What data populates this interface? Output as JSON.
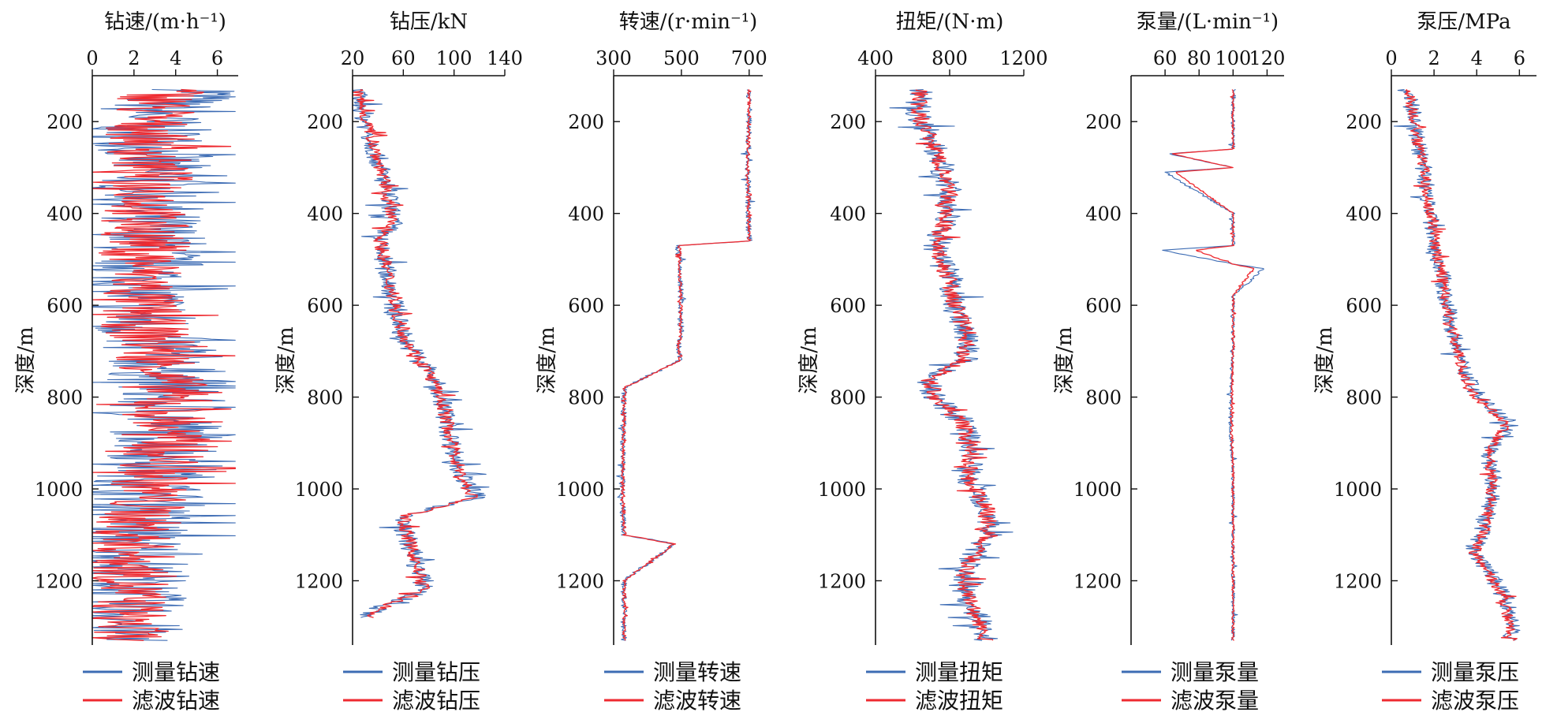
{
  "colors": {
    "measured": "#3d6cb4",
    "filtered": "#ee2a30",
    "axis": "#111111"
  },
  "shared_ylabel": "深度/m",
  "y_ticks": [
    200,
    400,
    600,
    800,
    1000,
    1200
  ],
  "chart_data": [
    {
      "type": "line",
      "title": "钻速/(m·h⁻¹)",
      "xlabel": "钻速/(m·h⁻¹)",
      "ylabel": "深度/m",
      "xlim": [
        0,
        7
      ],
      "ylim": [
        1340,
        100
      ],
      "x_ticks": [
        0,
        2,
        4,
        6
      ],
      "y_ticks": [
        200,
        400,
        600,
        800,
        1000,
        1200
      ],
      "orientation": "vertical-depth",
      "grid": false,
      "legend_position": "bottom",
      "series": [
        {
          "name": "测量钻速",
          "depth": [
            130,
            160,
            200,
            240,
            300,
            360,
            400,
            460,
            520,
            580,
            640,
            700,
            760,
            820,
            880,
            940,
            1000,
            1060,
            1120,
            1180,
            1240,
            1300,
            1330
          ],
          "values": [
            5.8,
            3.2,
            2.6,
            3.0,
            2.8,
            3.2,
            2.4,
            2.8,
            2.6,
            2.2,
            2.4,
            3.4,
            3.6,
            3.4,
            3.8,
            3.6,
            2.8,
            2.4,
            1.8,
            2.0,
            1.6,
            1.4,
            1.8
          ]
        },
        {
          "name": "滤波钻速",
          "depth": [
            130,
            160,
            200,
            240,
            300,
            360,
            400,
            460,
            520,
            580,
            640,
            700,
            760,
            820,
            880,
            940,
            1000,
            1060,
            1120,
            1180,
            1240,
            1300,
            1330
          ],
          "values": [
            3.8,
            3.0,
            2.6,
            2.8,
            2.7,
            3.0,
            2.5,
            2.7,
            2.5,
            2.3,
            2.4,
            3.2,
            3.5,
            3.5,
            3.6,
            3.5,
            2.8,
            2.3,
            1.9,
            2.0,
            1.7,
            1.5,
            1.7
          ]
        }
      ]
    },
    {
      "type": "line",
      "title": "钻压/kN",
      "xlabel": "钻压/kN",
      "ylabel": "深度/m",
      "xlim": [
        20,
        140
      ],
      "ylim": [
        1340,
        100
      ],
      "x_ticks": [
        20,
        60,
        100,
        140
      ],
      "y_ticks": [
        200,
        400,
        600,
        800,
        1000,
        1200
      ],
      "orientation": "vertical-depth",
      "grid": false,
      "legend_position": "bottom",
      "series": [
        {
          "name": "测量钻压",
          "depth": [
            130,
            180,
            240,
            300,
            360,
            420,
            460,
            500,
            560,
            620,
            680,
            740,
            800,
            860,
            920,
            980,
            1020,
            1060,
            1100,
            1160,
            1220,
            1260,
            1280
          ],
          "values": [
            22,
            28,
            35,
            42,
            48,
            52,
            40,
            44,
            50,
            54,
            62,
            80,
            90,
            95,
            100,
            108,
            118,
            58,
            62,
            70,
            78,
            40,
            30
          ]
        },
        {
          "name": "滤波钻压",
          "depth": [
            130,
            180,
            240,
            300,
            360,
            420,
            460,
            500,
            560,
            620,
            680,
            740,
            800,
            860,
            920,
            980,
            1020,
            1060,
            1100,
            1160,
            1220,
            1260,
            1280
          ],
          "values": [
            23,
            29,
            36,
            42,
            47,
            51,
            42,
            45,
            50,
            55,
            63,
            79,
            89,
            95,
            100,
            107,
            115,
            60,
            63,
            70,
            76,
            42,
            32
          ]
        }
      ]
    },
    {
      "type": "line",
      "title": "转速/(r·min⁻¹)",
      "xlabel": "转速/(r·min⁻¹)",
      "ylabel": "深度/m",
      "xlim": [
        300,
        740
      ],
      "ylim": [
        1340,
        100
      ],
      "x_ticks": [
        300,
        500,
        700
      ],
      "y_ticks": [
        200,
        400,
        600,
        800,
        1000,
        1200
      ],
      "orientation": "vertical-depth",
      "grid": false,
      "legend_position": "bottom",
      "series": [
        {
          "name": "测量转速",
          "depth": [
            130,
            200,
            300,
            380,
            460,
            470,
            520,
            600,
            620,
            660,
            680,
            720,
            780,
            800,
            1000,
            1100,
            1120,
            1200,
            1330
          ],
          "values": [
            700,
            700,
            695,
            698,
            700,
            490,
            495,
            500,
            495,
            500,
            490,
            495,
            330,
            330,
            325,
            330,
            480,
            330,
            330
          ]
        },
        {
          "name": "滤波转速",
          "depth": [
            130,
            200,
            300,
            380,
            460,
            470,
            520,
            600,
            620,
            660,
            680,
            720,
            780,
            800,
            1000,
            1100,
            1120,
            1200,
            1330
          ],
          "values": [
            700,
            700,
            695,
            698,
            700,
            495,
            495,
            500,
            495,
            500,
            492,
            495,
            332,
            332,
            327,
            332,
            478,
            332,
            332
          ]
        }
      ]
    },
    {
      "type": "line",
      "title": "扭矩/(N·m)",
      "xlabel": "扭矩/(N·m)",
      "ylabel": "深度/m",
      "xlim": [
        400,
        1200
      ],
      "ylim": [
        1340,
        100
      ],
      "x_ticks": [
        400,
        800,
        1200
      ],
      "y_ticks": [
        200,
        400,
        600,
        800,
        1000,
        1200
      ],
      "orientation": "vertical-depth",
      "grid": false,
      "legend_position": "bottom",
      "series": [
        {
          "name": "测量扭矩",
          "depth": [
            130,
            180,
            240,
            300,
            360,
            420,
            480,
            540,
            600,
            660,
            720,
            760,
            800,
            860,
            920,
            980,
            1040,
            1100,
            1160,
            1220,
            1280,
            1330
          ],
          "values": [
            650,
            620,
            700,
            760,
            800,
            780,
            720,
            800,
            820,
            900,
            880,
            680,
            720,
            880,
            920,
            900,
            1000,
            1020,
            900,
            880,
            950,
            1000
          ]
        },
        {
          "name": "滤波扭矩",
          "depth": [
            130,
            180,
            240,
            300,
            360,
            420,
            480,
            540,
            600,
            660,
            720,
            760,
            800,
            860,
            920,
            980,
            1040,
            1100,
            1160,
            1220,
            1280,
            1330
          ],
          "values": [
            640,
            625,
            700,
            755,
            795,
            775,
            725,
            795,
            825,
            895,
            875,
            690,
            725,
            875,
            915,
            905,
            995,
            1015,
            905,
            885,
            945,
            990
          ]
        }
      ]
    },
    {
      "type": "line",
      "title": "泵量/(L·min⁻¹)",
      "xlabel": "泵量/(L·min⁻¹)",
      "ylabel": "深度/m",
      "xlim": [
        40,
        130
      ],
      "ylim": [
        1340,
        100
      ],
      "x_ticks": [
        60,
        80,
        100,
        120
      ],
      "y_ticks": [
        200,
        400,
        600,
        800,
        1000,
        1200
      ],
      "orientation": "vertical-depth",
      "grid": false,
      "legend_position": "bottom",
      "series": [
        {
          "name": "测量泵量",
          "depth": [
            130,
            200,
            260,
            270,
            300,
            310,
            400,
            470,
            480,
            510,
            520,
            580,
            640,
            700,
            860,
            960,
            1200,
            1330
          ],
          "values": [
            100,
            100,
            100,
            62,
            100,
            60,
            100,
            100,
            58,
            100,
            118,
            100,
            100,
            100,
            98,
            100,
            100,
            100
          ]
        },
        {
          "name": "滤波泵量",
          "depth": [
            130,
            200,
            260,
            270,
            300,
            310,
            400,
            470,
            480,
            510,
            520,
            580,
            640,
            700,
            860,
            960,
            1200,
            1330
          ],
          "values": [
            100,
            100,
            100,
            64,
            100,
            66,
            100,
            100,
            78,
            100,
            112,
            100,
            100,
            100,
            99,
            100,
            100,
            100
          ]
        }
      ]
    },
    {
      "type": "line",
      "title": "泵压/MPa",
      "xlabel": "泵压/MPa",
      "ylabel": "深度/m",
      "xlim": [
        0,
        6.8
      ],
      "ylim": [
        1340,
        100
      ],
      "x_ticks": [
        0,
        2,
        4,
        6
      ],
      "y_ticks": [
        200,
        400,
        600,
        800,
        1000,
        1200
      ],
      "orientation": "vertical-depth",
      "grid": false,
      "legend_position": "bottom",
      "series": [
        {
          "name": "测量泵压",
          "depth": [
            130,
            180,
            240,
            300,
            360,
            420,
            480,
            540,
            600,
            660,
            720,
            760,
            800,
            860,
            920,
            980,
            1040,
            1100,
            1140,
            1180,
            1240,
            1300,
            1330
          ],
          "values": [
            0.7,
            1.0,
            1.2,
            1.5,
            1.7,
            1.9,
            2.1,
            2.4,
            2.6,
            2.9,
            3.3,
            3.6,
            4.1,
            5.6,
            4.5,
            4.8,
            4.6,
            4.2,
            3.8,
            4.6,
            5.4,
            5.6,
            5.8
          ]
        },
        {
          "name": "滤波泵压",
          "depth": [
            130,
            180,
            240,
            300,
            360,
            420,
            480,
            540,
            600,
            660,
            720,
            760,
            800,
            860,
            920,
            980,
            1040,
            1100,
            1140,
            1180,
            1240,
            1300,
            1330
          ],
          "values": [
            0.8,
            1.0,
            1.2,
            1.5,
            1.7,
            1.9,
            2.1,
            2.4,
            2.6,
            2.9,
            3.2,
            3.5,
            4.0,
            5.4,
            4.6,
            4.7,
            4.6,
            4.3,
            3.9,
            4.5,
            5.3,
            5.5,
            5.7
          ]
        }
      ]
    }
  ]
}
